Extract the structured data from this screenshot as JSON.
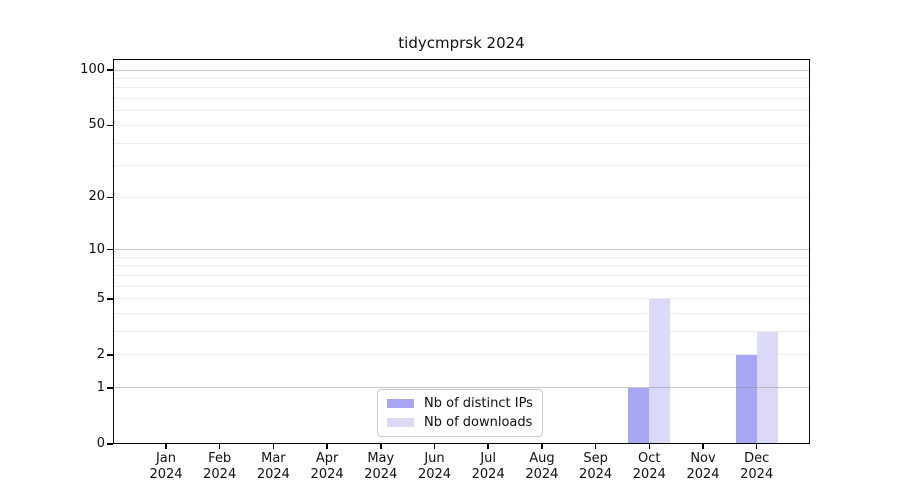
{
  "chart": {
    "title": "tidycmprsk 2024"
  },
  "chart_data": {
    "type": "bar",
    "title": "tidycmprsk 2024",
    "categories": [
      "Jan",
      "Feb",
      "Mar",
      "Apr",
      "May",
      "Jun",
      "Jul",
      "Aug",
      "Sep",
      "Oct",
      "Nov",
      "Dec"
    ],
    "year_label": "2024",
    "series": [
      {
        "name": "Nb of distinct IPs",
        "color": "#a6a6f5",
        "values": [
          0,
          0,
          0,
          0,
          0,
          0,
          0,
          0,
          0,
          1,
          0,
          2
        ]
      },
      {
        "name": "Nb of downloads",
        "color": "#dadaf8",
        "values": [
          0,
          0,
          0,
          0,
          0,
          0,
          0,
          0,
          0,
          5,
          0,
          3
        ]
      }
    ],
    "y_scale": "log1p",
    "ylim": [
      0,
      100
    ],
    "y_ticks": [
      0,
      1,
      2,
      5,
      10,
      20,
      50,
      100
    ],
    "y_major_gridlines": [
      1,
      10,
      100
    ],
    "grid": "horizontal-log-minor-and-major",
    "legend_position": "inside-bottom-center"
  },
  "colors": {
    "bar_distinct_ips": "#a6a6f5",
    "bar_downloads": "#dadaf8",
    "major_grid": "#c9c9c9",
    "minor_grid": "#ededed",
    "axis": "#000000",
    "text": "#111111",
    "legend_border": "#cccccc",
    "background": "#ffffff"
  }
}
